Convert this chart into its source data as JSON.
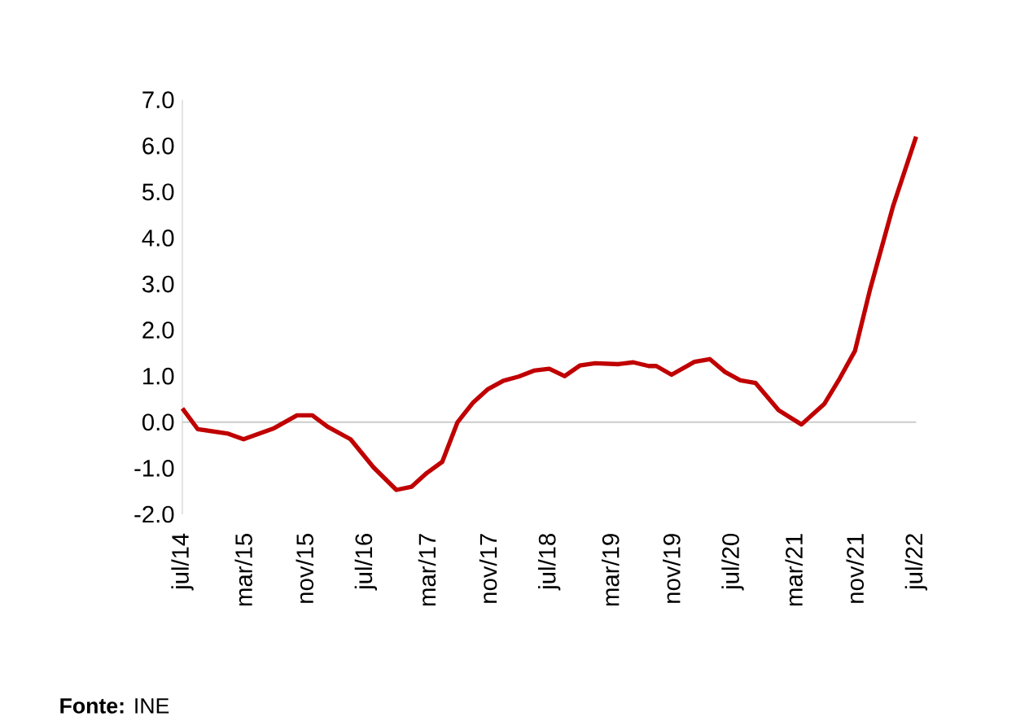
{
  "chart_data": {
    "type": "line",
    "x": [
      "2014-07",
      "2014-09",
      "2015-01",
      "2015-03",
      "2015-07",
      "2015-10",
      "2015-12",
      "2016-02",
      "2016-05",
      "2016-08",
      "2016-11",
      "2017-01",
      "2017-03",
      "2017-05",
      "2017-07",
      "2017-09",
      "2017-11",
      "2018-01",
      "2018-03",
      "2018-05",
      "2018-07",
      "2018-09",
      "2018-11",
      "2019-01",
      "2019-04",
      "2019-06",
      "2019-08",
      "2019-09",
      "2019-11",
      "2020-02",
      "2020-04",
      "2020-06",
      "2020-08",
      "2020-10",
      "2021-01",
      "2021-04",
      "2021-07",
      "2021-09",
      "2021-11",
      "2022-01",
      "2022-02",
      "2022-04",
      "2022-07"
    ],
    "series": [
      {
        "color": "#c00000",
        "values": [
          0.3,
          -0.15,
          -0.25,
          -0.37,
          -0.13,
          0.15,
          0.15,
          -0.1,
          -0.37,
          -0.98,
          -1.47,
          -1.4,
          -1.1,
          -0.86,
          0.0,
          0.42,
          0.72,
          0.9,
          0.99,
          1.12,
          1.16,
          1.0,
          1.23,
          1.28,
          1.26,
          1.3,
          1.22,
          1.22,
          1.03,
          1.31,
          1.37,
          1.09,
          0.91,
          0.85,
          0.26,
          -0.05,
          0.4,
          0.95,
          1.55,
          2.9,
          3.5,
          4.7,
          6.2
        ]
      }
    ],
    "xlim": [
      "2014-07",
      "2022-07"
    ],
    "xticks": [
      {
        "value": "2014-07",
        "label": "jul/14"
      },
      {
        "value": "2015-03",
        "label": "mar/15"
      },
      {
        "value": "2015-11",
        "label": "nov/15"
      },
      {
        "value": "2016-07",
        "label": "jul/16"
      },
      {
        "value": "2017-03",
        "label": "mar/17"
      },
      {
        "value": "2017-11",
        "label": "nov/17"
      },
      {
        "value": "2018-07",
        "label": "jul/18"
      },
      {
        "value": "2019-03",
        "label": "mar/19"
      },
      {
        "value": "2019-11",
        "label": "nov/19"
      },
      {
        "value": "2020-07",
        "label": "jul/20"
      },
      {
        "value": "2021-03",
        "label": "mar/21"
      },
      {
        "value": "2021-11",
        "label": "nov/21"
      },
      {
        "value": "2022-07",
        "label": "jul/22"
      }
    ],
    "ylim": [
      -2,
      7
    ],
    "yticks": [
      {
        "value": -2,
        "label": "-2.0"
      },
      {
        "value": -1,
        "label": "-1.0"
      },
      {
        "value": 0,
        "label": "0.0"
      },
      {
        "value": 1,
        "label": "1.0"
      },
      {
        "value": 2,
        "label": "2.0"
      },
      {
        "value": 3,
        "label": "3.0"
      },
      {
        "value": 4,
        "label": "4.0"
      },
      {
        "value": 5,
        "label": "5.0"
      },
      {
        "value": 6,
        "label": "6.0"
      },
      {
        "value": 7,
        "label": "7.0"
      }
    ],
    "annotations": [
      "**Fonte:** INE"
    ]
  }
}
